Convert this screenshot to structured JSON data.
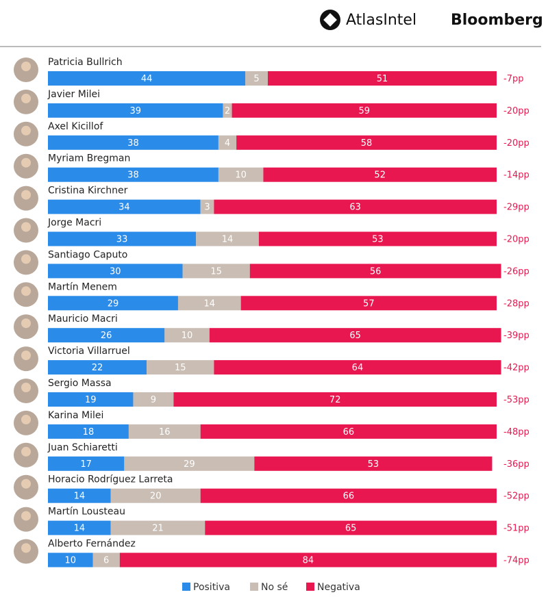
{
  "header": {
    "brand_1": "AtlasIntel",
    "brand_2": "Bloomberg"
  },
  "chart_data": {
    "type": "stacked-bar-horizontal",
    "categories": [
      "Patricia Bullrich",
      "Javier Milei",
      "Axel Kicillof",
      "Myriam Bregman",
      "Cristina Kirchner",
      "Jorge Macri",
      "Santiago Caputo",
      "Martín Menem",
      "Mauricio Macri",
      "Victoria Villarruel",
      "Sergio Massa",
      "Karina Milei",
      "Juan Schiaretti",
      "Horacio Rodríguez Larreta",
      "Martín Lousteau",
      "Alberto Fernández"
    ],
    "series": [
      {
        "name": "Positiva",
        "color": "#2b8be8",
        "values": [
          44,
          39,
          38,
          38,
          34,
          33,
          30,
          29,
          26,
          22,
          19,
          18,
          17,
          14,
          14,
          10
        ]
      },
      {
        "name": "No sé",
        "color": "#c9bdb4",
        "values": [
          5,
          2,
          4,
          10,
          3,
          14,
          15,
          14,
          10,
          15,
          9,
          16,
          29,
          20,
          21,
          6
        ]
      },
      {
        "name": "Negativa",
        "color": "#e8174f",
        "values": [
          51,
          59,
          58,
          52,
          63,
          53,
          56,
          57,
          65,
          64,
          72,
          66,
          53,
          66,
          65,
          84
        ]
      }
    ],
    "net_labels": [
      "-7pp",
      "-20pp",
      "-20pp",
      "-14pp",
      "-29pp",
      "-20pp",
      "-26pp",
      "-28pp",
      "-39pp",
      "-42pp",
      "-53pp",
      "-48pp",
      "-36pp",
      "-52pp",
      "-51pp",
      "-74pp"
    ],
    "net_color": "#e8174f",
    "xlim": [
      0,
      100
    ]
  }
}
